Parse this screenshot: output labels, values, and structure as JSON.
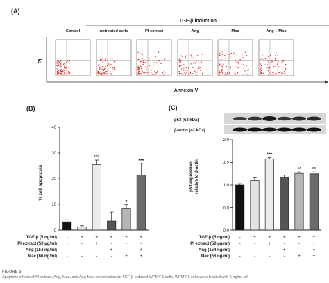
{
  "figure": {
    "panel_a": {
      "label": "(A)",
      "induction_label": "TGF-β induction",
      "panel_titles": [
        "Control",
        "untreated cells",
        "PI extract",
        "Ang",
        "Mac",
        "Ang + Mac"
      ],
      "y_axis": "PI",
      "x_axis": "Annexin-V"
    },
    "panel_b": {
      "label": "(B)",
      "ylabel": "% cell apoptosis",
      "yticks": [
        "0",
        "10",
        "20",
        "30",
        "40"
      ]
    },
    "panel_c": {
      "label": "(C)",
      "blot_labels": [
        "p53 (53 kDa)",
        "β-actin (42 kDa)"
      ],
      "ylabel_line1": "p53 expression",
      "ylabel_line2": "relative to β-actin",
      "yticks": [
        "0.0",
        "0.5",
        "1.0",
        "1.5",
        "2.0"
      ]
    },
    "treatment_table": {
      "rows": [
        "TGF-β (5 ng/ml)",
        "PI extract (50 µg/ml)",
        "Ang   (154 ng/ml)",
        "Mac (66 ng/ml)"
      ],
      "signs": [
        [
          "-",
          "+",
          "+",
          "+",
          "+",
          "+"
        ],
        [
          "-",
          "-",
          "+",
          "-",
          "-",
          "-"
        ],
        [
          "-",
          "-",
          "-",
          "+",
          "-",
          "+"
        ],
        [
          "-",
          "-",
          "-",
          "-",
          "+",
          "+"
        ]
      ]
    },
    "caption": {
      "label": "FIGURE 5",
      "text": "Apoptotic effects of PI extract, Ang, Mac, and Ang-Mac combination on TGF-β-induced WPMY-1 cells. WPMY-1 cells were treated with 5 ng/mL of"
    }
  },
  "chart_data": [
    {
      "type": "bar",
      "title": "",
      "xlabel": "",
      "ylabel": "% cell apoptosis",
      "ylim": [
        0,
        40
      ],
      "categories": [
        "1",
        "2",
        "3",
        "4",
        "5",
        "6"
      ],
      "values": [
        3.2,
        1.2,
        25.5,
        3.5,
        8.5,
        21.5
      ],
      "errors": [
        0.8,
        0.5,
        1.8,
        3.5,
        1.3,
        4.5
      ],
      "significance": [
        "",
        "",
        "***",
        "",
        "*",
        "***"
      ],
      "colors": [
        "#111111",
        "#e3e3e3",
        "#ececec",
        "#555555",
        "#b5b5b5",
        "#6b6b6b"
      ]
    },
    {
      "type": "bar",
      "title": "",
      "xlabel": "",
      "ylabel": "p53 expression relative to β-actin",
      "ylim": [
        0,
        2.0
      ],
      "categories": [
        "1",
        "2",
        "3",
        "4",
        "5",
        "6"
      ],
      "values": [
        1.0,
        1.1,
        1.58,
        1.18,
        1.26,
        1.25
      ],
      "errors": [
        0.03,
        0.06,
        0.03,
        0.04,
        0.03,
        0.04
      ],
      "significance": [
        "",
        "",
        "***",
        "",
        "**",
        "**"
      ],
      "colors": [
        "#111111",
        "#e3e3e3",
        "#ececec",
        "#555555",
        "#b5b5b5",
        "#6b6b6b"
      ]
    }
  ]
}
